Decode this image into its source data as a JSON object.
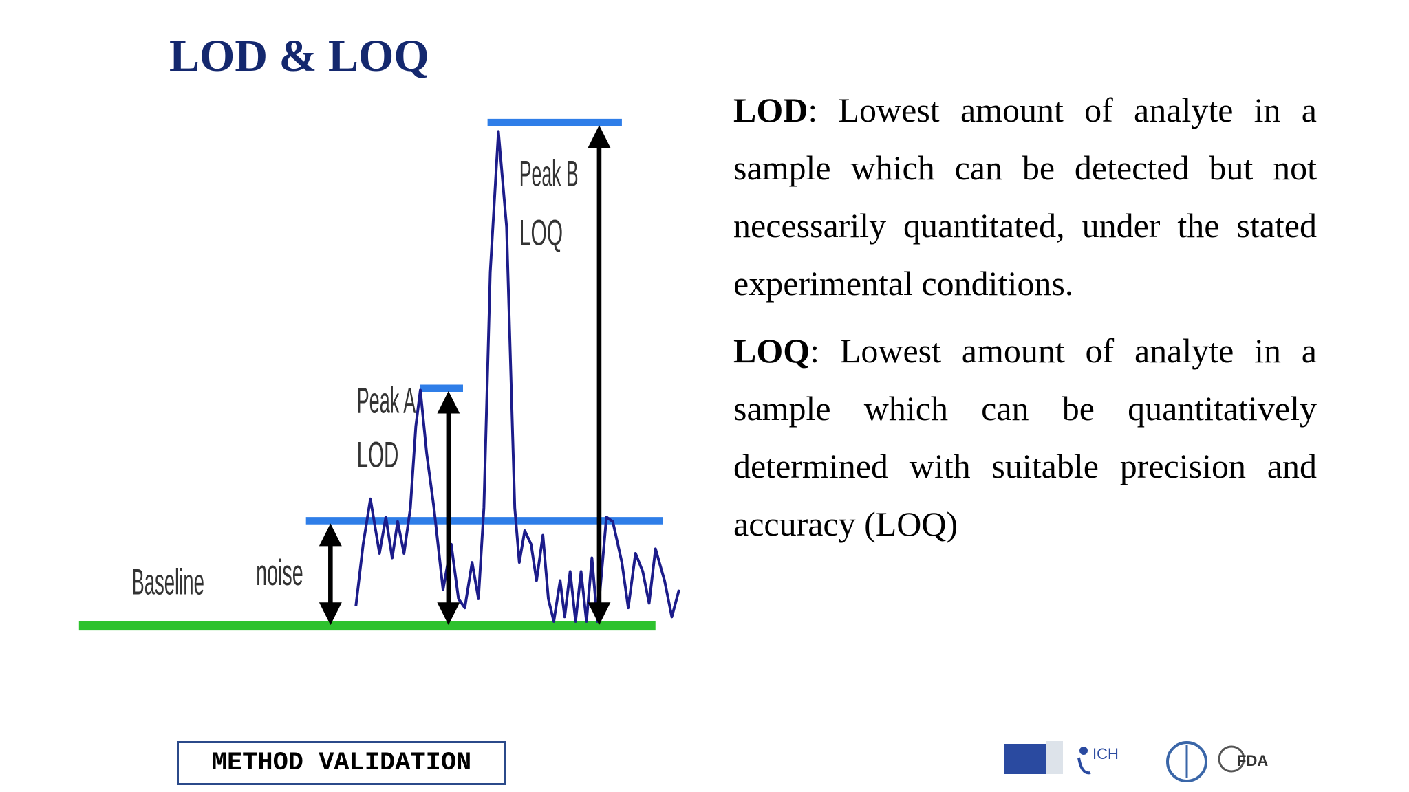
{
  "header": {
    "title": "LOD & LOQ"
  },
  "diagram": {
    "labels": {
      "peak_b": "Peak B",
      "loq": "LOQ",
      "peak_a": "Peak A",
      "lod": "LOD",
      "baseline": "Baseline",
      "noise": "noise"
    }
  },
  "definitions": [
    {
      "term": "LOD",
      "text": ": Lowest amount of analyte in a sample which can be detected but not necessarily quantitated, under the stated experimental conditions."
    },
    {
      "term": "LOQ",
      "text": ": Lowest amount of analyte in a sample which can be quantitatively determined with suitable precision and accuracy (LOQ)"
    }
  ],
  "footer": {
    "label": "METHOD VALIDATION",
    "logos": [
      "ICH",
      "FDA"
    ]
  }
}
